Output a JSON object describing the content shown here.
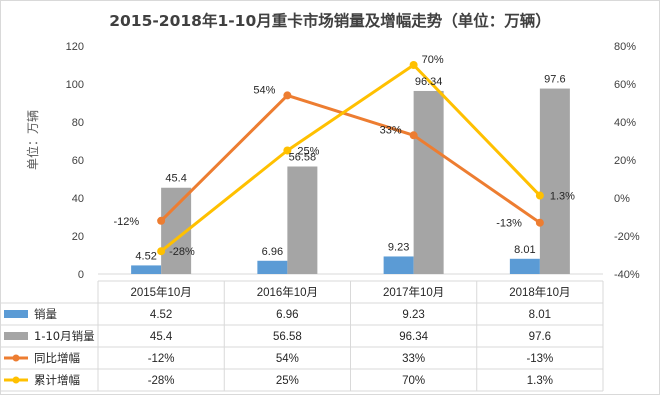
{
  "chart_data": {
    "type": "bar",
    "title": "2015-2018年1-10月重卡市场销量及增幅走势（单位：万辆）",
    "ylabel": "单位：万辆",
    "categories": [
      "2015年10月",
      "2016年10月",
      "2017年10月",
      "2018年10月"
    ],
    "ylim": [
      0,
      120
    ],
    "y_ticks": [
      "0",
      "20",
      "40",
      "60",
      "80",
      "100",
      "120"
    ],
    "y2lim": [
      -40,
      80
    ],
    "y2_ticks": [
      "-40%",
      "-20%",
      "0%",
      "20%",
      "40%",
      "60%",
      "80%"
    ],
    "grid": false,
    "legend": "table",
    "bar_series": [
      {
        "name": "销量",
        "values": [
          4.52,
          6.96,
          9.23,
          8.01
        ],
        "labels": [
          "4.52",
          "6.96",
          "9.23",
          "8.01"
        ],
        "color": "#5B9BD5"
      },
      {
        "name": "1-10月销量",
        "values": [
          45.4,
          56.58,
          96.34,
          97.6
        ],
        "labels": [
          "45.4",
          "56.58",
          "96.34",
          "97.6"
        ],
        "color": "#A5A5A5"
      }
    ],
    "line_series": [
      {
        "name": "同比增幅",
        "values": [
          -12,
          54,
          33,
          -13
        ],
        "labels": [
          "-12%",
          "54%",
          "33%",
          "-13%"
        ],
        "color": "#ED7D31"
      },
      {
        "name": "累计增幅",
        "values": [
          -28,
          25,
          70,
          1.3
        ],
        "labels": [
          "-28%",
          "25%",
          "70%",
          "1.3%"
        ],
        "color": "#FFC000"
      }
    ]
  }
}
